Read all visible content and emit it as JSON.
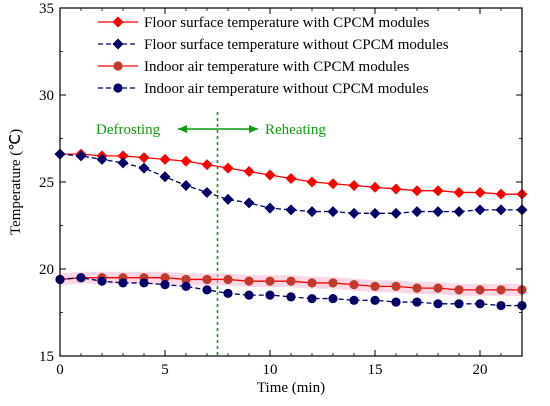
{
  "chart_data": {
    "type": "line",
    "xlabel": "Time (min)",
    "ylabel": "Temperature (℃)",
    "xlim": [
      0,
      22
    ],
    "ylim": [
      15,
      35
    ],
    "xticks": [
      0,
      5,
      10,
      15,
      20
    ],
    "yticks": [
      15,
      20,
      25,
      30,
      35
    ],
    "legend_position": "top-left",
    "annotations": {
      "left_label": "Defrosting",
      "right_label": "Reheating",
      "divider_x": 7.5,
      "color": "#119911"
    },
    "series": [
      {
        "name": "Floor surface temperature with CPCM modules",
        "color": "#ff0000",
        "line_style": "solid",
        "marker": "diamond",
        "marker_color": "#ff0000",
        "x": [
          0,
          1,
          2,
          3,
          4,
          5,
          6,
          7,
          8,
          9,
          10,
          11,
          12,
          13,
          14,
          15,
          16,
          17,
          18,
          19,
          20,
          21,
          22
        ],
        "y": [
          26.6,
          26.6,
          26.5,
          26.5,
          26.4,
          26.3,
          26.2,
          26.0,
          25.8,
          25.6,
          25.4,
          25.2,
          25.0,
          24.9,
          24.8,
          24.7,
          24.6,
          24.5,
          24.5,
          24.4,
          24.4,
          24.3,
          24.3
        ]
      },
      {
        "name": "Floor surface temperature without CPCM modules",
        "color": "#000066",
        "line_style": "dashed",
        "marker": "diamond",
        "marker_color": "#000066",
        "x": [
          0,
          1,
          2,
          3,
          4,
          5,
          6,
          7,
          8,
          9,
          10,
          11,
          12,
          13,
          14,
          15,
          16,
          17,
          18,
          19,
          20,
          21,
          22
        ],
        "y": [
          26.6,
          26.5,
          26.3,
          26.1,
          25.8,
          25.3,
          24.8,
          24.4,
          24.0,
          23.8,
          23.5,
          23.4,
          23.3,
          23.3,
          23.2,
          23.2,
          23.2,
          23.3,
          23.3,
          23.3,
          23.4,
          23.4,
          23.4
        ]
      },
      {
        "name": "Indoor air temperature with CPCM modules",
        "color": "#ff0000",
        "line_style": "solid",
        "marker": "circle",
        "marker_color": "#c0392b",
        "x": [
          0,
          1,
          2,
          3,
          4,
          5,
          6,
          7,
          8,
          9,
          10,
          11,
          12,
          13,
          14,
          15,
          16,
          17,
          18,
          19,
          20,
          21,
          22
        ],
        "y": [
          19.4,
          19.5,
          19.5,
          19.5,
          19.5,
          19.5,
          19.4,
          19.4,
          19.4,
          19.3,
          19.3,
          19.3,
          19.2,
          19.2,
          19.1,
          19.0,
          19.0,
          18.9,
          18.9,
          18.8,
          18.8,
          18.8,
          18.8
        ]
      },
      {
        "name": "Indoor air temperature without CPCM modules",
        "color": "#000066",
        "line_style": "dashed",
        "marker": "circle",
        "marker_color": "#000066",
        "x": [
          0,
          1,
          2,
          3,
          4,
          5,
          6,
          7,
          8,
          9,
          10,
          11,
          12,
          13,
          14,
          15,
          16,
          17,
          18,
          19,
          20,
          21,
          22
        ],
        "y": [
          19.4,
          19.5,
          19.3,
          19.2,
          19.2,
          19.1,
          19.0,
          18.8,
          18.6,
          18.5,
          18.5,
          18.4,
          18.3,
          18.3,
          18.2,
          18.2,
          18.1,
          18.1,
          18.0,
          18.0,
          18.0,
          17.9,
          17.9
        ]
      }
    ]
  }
}
